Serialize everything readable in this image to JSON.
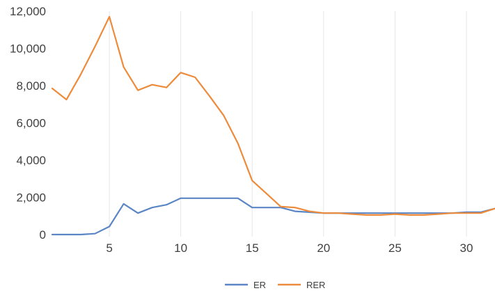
{
  "chart_data": {
    "type": "line",
    "title": "",
    "xlabel": "",
    "ylabel": "",
    "x": [
      1,
      2,
      3,
      4,
      5,
      6,
      7,
      8,
      9,
      10,
      11,
      12,
      13,
      14,
      15,
      16,
      17,
      18,
      19,
      20,
      21,
      22,
      23,
      24,
      25,
      26,
      27,
      28,
      29,
      30,
      31,
      32
    ],
    "series": [
      {
        "name": "ER",
        "color": "#5B86C5",
        "values": [
          0,
          0,
          0,
          50,
          430,
          1650,
          1150,
          1450,
          1600,
          1950,
          1950,
          1950,
          1950,
          1950,
          1450,
          1450,
          1450,
          1250,
          1200,
          1150,
          1150,
          1150,
          1150,
          1150,
          1150,
          1150,
          1150,
          1150,
          1150,
          1200,
          1200,
          1400
        ]
      },
      {
        "name": "RER",
        "color": "#ED8B3A",
        "values": [
          7850,
          7250,
          8600,
          10100,
          11700,
          9000,
          7750,
          8050,
          7900,
          8700,
          8450,
          7450,
          6400,
          4900,
          2900,
          2200,
          1500,
          1450,
          1250,
          1150,
          1150,
          1100,
          1050,
          1050,
          1100,
          1050,
          1050,
          1100,
          1150,
          1150,
          1150,
          1400
        ]
      }
    ],
    "ylim": [
      0,
      12000
    ],
    "yticks": [
      "0",
      "2,000",
      "4,000",
      "6,000",
      "8,000",
      "10,000",
      "12,000"
    ],
    "xlim": [
      1,
      32
    ],
    "xticks": [
      "5",
      "10",
      "15",
      "20",
      "25",
      "30"
    ],
    "grid": "vertical",
    "legend": "bottom"
  }
}
